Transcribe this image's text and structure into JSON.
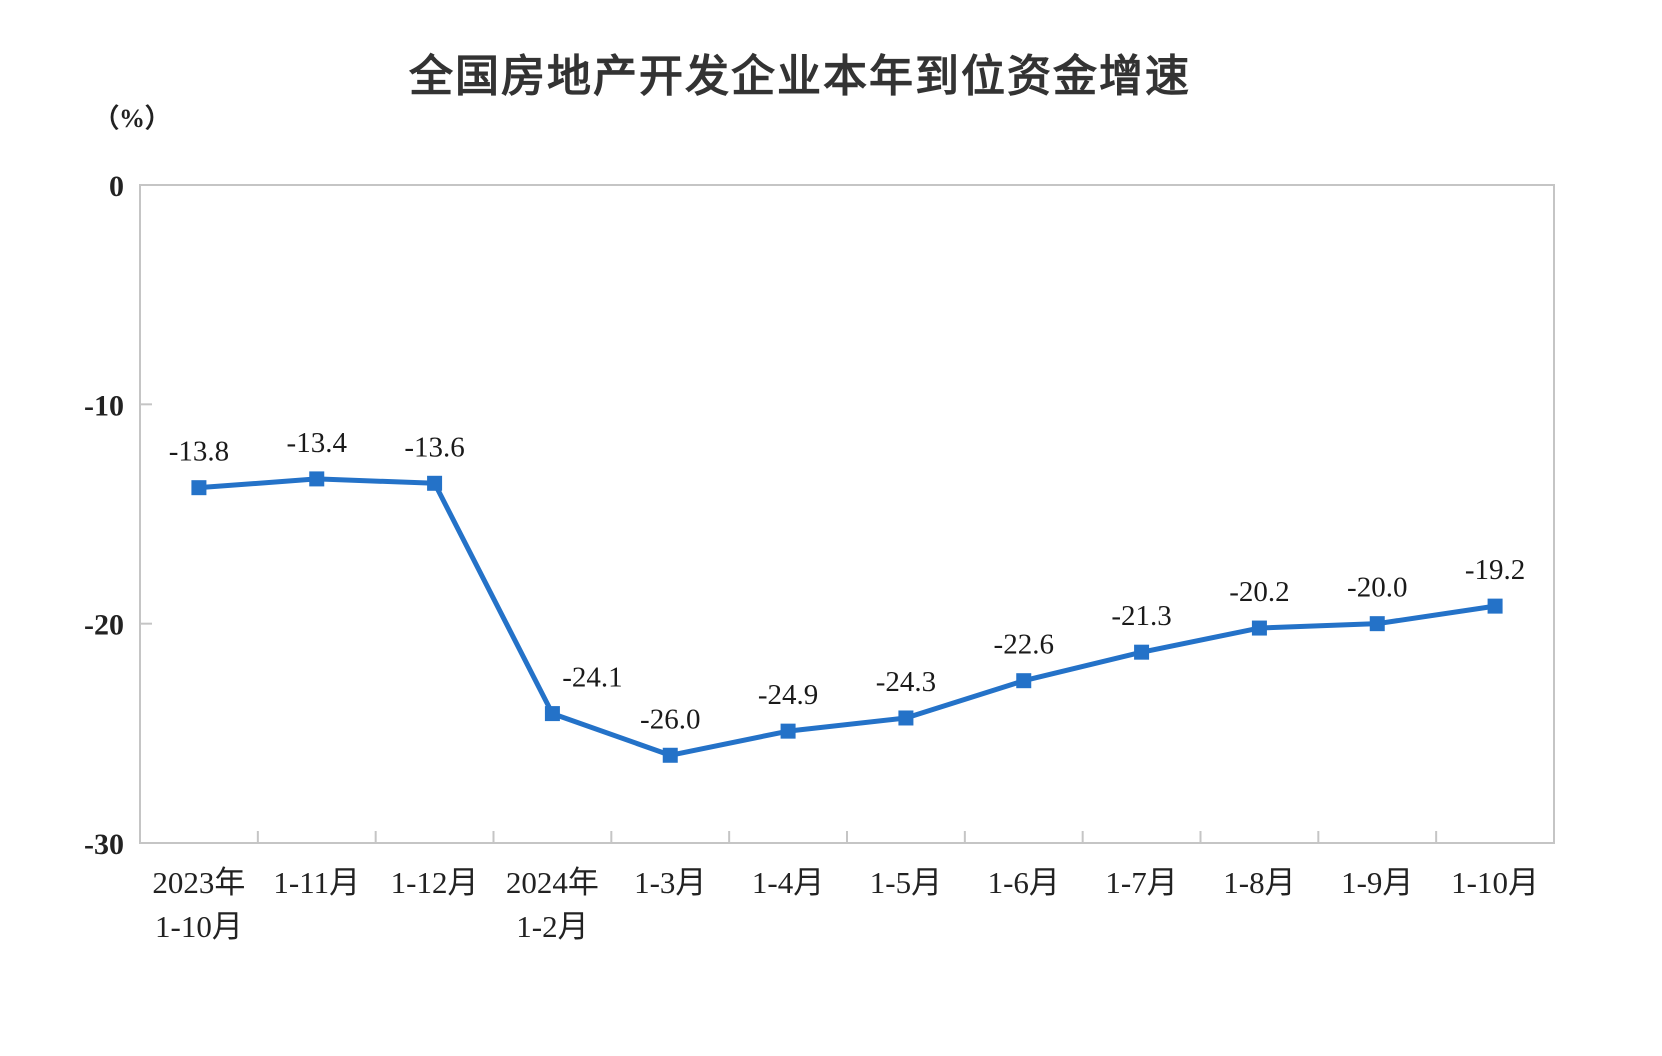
{
  "chart_data": {
    "type": "line",
    "title": "全国房地产开发企业本年到位资金增速",
    "unit_label": "（%）",
    "categories": [
      [
        "2023年",
        "1-10月"
      ],
      [
        "1-11月"
      ],
      [
        "1-12月"
      ],
      [
        "2024年",
        "1-2月"
      ],
      [
        "1-3月"
      ],
      [
        "1-4月"
      ],
      [
        "1-5月"
      ],
      [
        "1-6月"
      ],
      [
        "1-7月"
      ],
      [
        "1-8月"
      ],
      [
        "1-9月"
      ],
      [
        "1-10月"
      ]
    ],
    "series": [
      {
        "values": [
          -13.8,
          -13.4,
          -13.6,
          -24.1,
          -26.0,
          -24.9,
          -24.3,
          -22.6,
          -21.3,
          -20.2,
          -20.0,
          -19.2
        ],
        "labels": [
          "-13.8",
          "-13.4",
          "-13.6",
          "-24.1",
          "-26.0",
          "-24.9",
          "-24.3",
          "-22.6",
          "-21.3",
          "-20.2",
          "-20.0",
          "-19.2"
        ],
        "color": "#2472c8",
        "marker": "square"
      }
    ],
    "yticks": [
      0,
      -10,
      -20,
      -30
    ],
    "ylim": [
      -30,
      0
    ],
    "grid": false,
    "legend": "none",
    "axis_color": "#c5c5c5",
    "text_color": "#222222",
    "label_color": "#1a1a1a"
  }
}
